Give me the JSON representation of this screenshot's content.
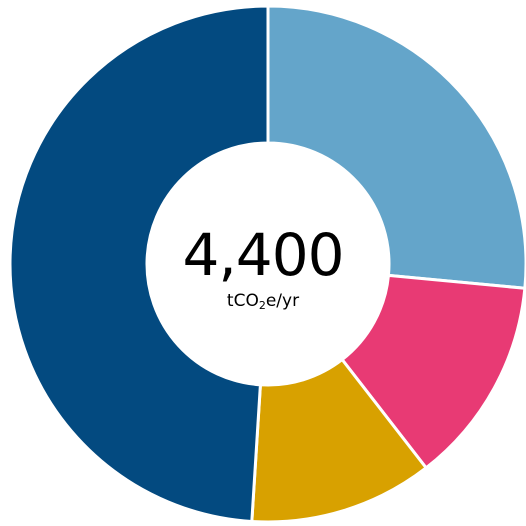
{
  "chart_data": {
    "type": "pie",
    "variant": "donut",
    "slices": [
      {
        "value": 26.5,
        "color": "#64a5ca"
      },
      {
        "value": 13.0,
        "color": "#e83a74"
      },
      {
        "value": 11.5,
        "color": "#d8a100"
      },
      {
        "value": 49.0,
        "color": "#034a80"
      }
    ],
    "start": "top",
    "direction": "clockwise",
    "separator_color": "#ffffff",
    "center_label": {
      "value": "4,400",
      "unit_prefix": "tCO",
      "unit_subscript": "2",
      "unit_suffix": "e/yr"
    }
  }
}
